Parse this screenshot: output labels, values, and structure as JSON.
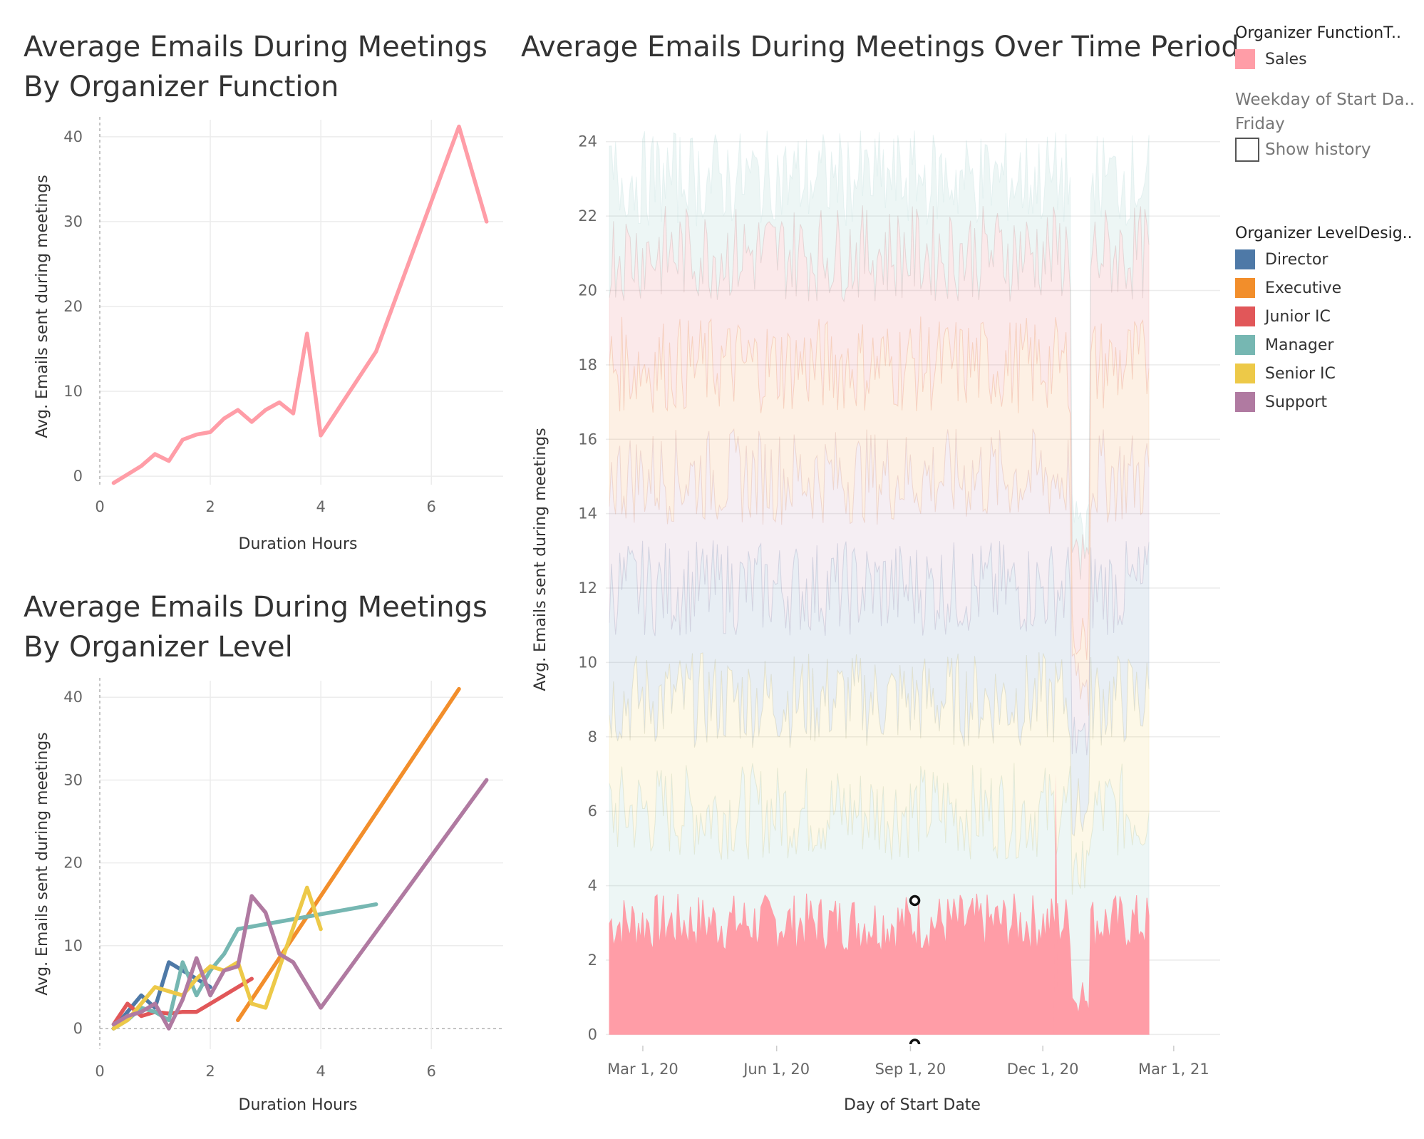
{
  "charts": {
    "function": {
      "title_line1": "Average Emails During Meetings",
      "title_line2": "By Organizer Function",
      "ylabel": "Avg. Emails sent during meetings",
      "xlabel": "Duration Hours",
      "x_ticks": [
        "0",
        "2",
        "4",
        "6"
      ],
      "y_ticks": [
        "0",
        "10",
        "20",
        "30",
        "40"
      ]
    },
    "level": {
      "title_line1": "Average Emails During Meetings",
      "title_line2": "By Organizer Level",
      "ylabel": "Avg. Emails sent during meetings",
      "xlabel": "Duration Hours",
      "x_ticks": [
        "0",
        "2",
        "4",
        "6"
      ],
      "y_ticks": [
        "0",
        "10",
        "20",
        "30",
        "40"
      ]
    },
    "time": {
      "title": "Average Emails During Meetings Over Time Period",
      "ylabel": "Avg. Emails sent during meetings",
      "xlabel": "Day of Start Date",
      "x_ticks": [
        "Mar 1, 20",
        "Jun 1, 20",
        "Sep 1, 20",
        "Dec 1, 20",
        "Mar 1, 21"
      ],
      "y_ticks": [
        "0",
        "2",
        "4",
        "6",
        "8",
        "10",
        "12",
        "14",
        "16",
        "18",
        "20",
        "22",
        "24"
      ]
    }
  },
  "legend": {
    "function_title": "Organizer FunctionT..",
    "function_items": [
      {
        "label": "Sales",
        "color": "#ff9da7"
      }
    ],
    "weekday_title": "Weekday of Start Da..",
    "weekday_value": "Friday",
    "show_history_label": "Show history",
    "level_title": "Organizer LevelDesig..",
    "level_items": [
      {
        "label": "Director",
        "color": "#4e79a7"
      },
      {
        "label": "Executive",
        "color": "#f28e2b"
      },
      {
        "label": "Junior IC",
        "color": "#e15759"
      },
      {
        "label": "Manager",
        "color": "#76b7b2"
      },
      {
        "label": "Senior IC",
        "color": "#edc948"
      },
      {
        "label": "Support",
        "color": "#b07aa1"
      }
    ]
  },
  "chart_data": [
    {
      "type": "line",
      "title": "Average Emails During Meetings By Organizer Function",
      "xlabel": "Duration Hours",
      "ylabel": "Avg. Emails sent during meetings",
      "xlim": [
        0,
        7.3
      ],
      "ylim": [
        -1,
        42
      ],
      "series": [
        {
          "name": "Sales",
          "color": "#ff9da7",
          "x": [
            0.25,
            0.75,
            1.0,
            1.25,
            1.5,
            1.75,
            2.0,
            2.25,
            2.5,
            2.75,
            3.0,
            3.25,
            3.5,
            3.75,
            4.0,
            5.0,
            6.5,
            7.0
          ],
          "y": [
            -0.8,
            1.2,
            2.6,
            1.8,
            4.3,
            4.9,
            5.2,
            6.8,
            7.8,
            6.4,
            7.8,
            8.7,
            7.4,
            16.8,
            4.8,
            14.7,
            41.2,
            30.0
          ]
        }
      ]
    },
    {
      "type": "line",
      "title": "Average Emails During Meetings By Organizer Level",
      "xlabel": "Duration Hours",
      "ylabel": "Avg. Emails sent during meetings",
      "xlim": [
        0,
        7.3
      ],
      "ylim": [
        -2.5,
        42
      ],
      "series": [
        {
          "name": "Director",
          "color": "#4e79a7",
          "x": [
            0.25,
            0.5,
            0.75,
            1.0,
            1.25,
            1.5,
            1.75,
            2.0
          ],
          "y": [
            0.0,
            2.0,
            4.0,
            2.5,
            8.0,
            7.0,
            6.0,
            5.0
          ]
        },
        {
          "name": "Executive",
          "color": "#f28e2b",
          "x": [
            2.5,
            6.5
          ],
          "y": [
            1.0,
            41.0
          ]
        },
        {
          "name": "Junior IC",
          "color": "#e15759",
          "x": [
            0.25,
            0.5,
            0.75,
            1.0,
            1.25,
            1.5,
            1.75,
            2.0,
            2.25,
            2.5,
            2.75
          ],
          "y": [
            0.5,
            3.0,
            1.5,
            2.0,
            1.8,
            2.0,
            2.0,
            3.0,
            4.0,
            5.0,
            6.0
          ]
        },
        {
          "name": "Manager",
          "color": "#76b7b2",
          "x": [
            0.25,
            0.5,
            0.75,
            1.0,
            1.25,
            1.5,
            1.75,
            2.0,
            2.25,
            2.5,
            5.0
          ],
          "y": [
            0.0,
            1.0,
            2.5,
            2.0,
            1.0,
            8.0,
            4.0,
            7.0,
            9.0,
            12.0,
            15.0
          ]
        },
        {
          "name": "Senior IC",
          "color": "#edc948",
          "x": [
            0.25,
            0.5,
            0.75,
            1.0,
            1.25,
            1.5,
            1.75,
            2.0,
            2.25,
            2.5,
            2.75,
            3.0,
            3.75,
            4.0
          ],
          "y": [
            0.0,
            1.0,
            3.0,
            5.0,
            4.5,
            4.0,
            6.0,
            7.5,
            7.0,
            8.0,
            3.0,
            2.5,
            17.0,
            12.0
          ]
        },
        {
          "name": "Support",
          "color": "#b07aa1",
          "x": [
            0.25,
            0.5,
            0.75,
            1.0,
            1.25,
            1.5,
            1.75,
            2.0,
            2.25,
            2.5,
            2.75,
            3.0,
            3.25,
            3.5,
            4.0,
            7.0
          ],
          "y": [
            0.5,
            1.5,
            2.0,
            3.0,
            0.0,
            3.5,
            8.5,
            4.0,
            7.0,
            7.5,
            16.0,
            14.0,
            9.0,
            8.0,
            2.5,
            30.0
          ]
        }
      ]
    },
    {
      "type": "area",
      "title": "Average Emails During Meetings Over Time Period",
      "xlabel": "Day of Start Date",
      "ylabel": "Avg. Emails sent during meetings",
      "stacked": true,
      "x_range": [
        "2020-02-07",
        "2021-02-12"
      ],
      "ylim": [
        -0.3,
        25.7
      ],
      "highlighted_series": "Sales",
      "highlighted_color": "#ff9da7",
      "sales_avg_approx": 3.0,
      "stack_band_tops_approx": [
        {
          "name": "Sales",
          "value": 3.0,
          "color": "#ff9da7"
        },
        {
          "name": "Manager",
          "value": 6.0,
          "color": "#76b7b2"
        },
        {
          "name": "Senior IC",
          "value": 9.0,
          "color": "#edc948"
        },
        {
          "name": "Director",
          "value": 12.0,
          "color": "#4e79a7"
        },
        {
          "name": "Support",
          "value": 15.0,
          "color": "#b07aa1"
        },
        {
          "name": "Executive",
          "value": 18.0,
          "color": "#f28e2b"
        },
        {
          "name": "Junior IC",
          "value": 21.0,
          "color": "#e15759"
        },
        {
          "name": "Manager",
          "value": 23.0,
          "color": "#76b7b2"
        }
      ],
      "marked_point": {
        "date": "2020-09-04",
        "value": 3.6
      }
    }
  ]
}
